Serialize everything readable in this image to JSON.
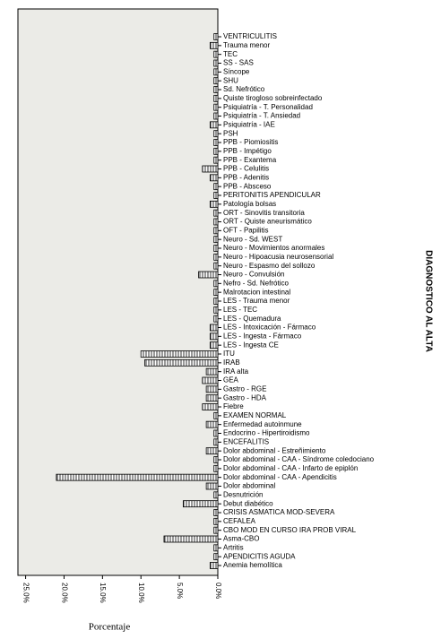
{
  "chart_data": {
    "type": "hbar",
    "x_label": "Porcentaje",
    "y_label": "DIAGNOSTICO AL ALTA",
    "categories": [
      "VENTRICULITIS",
      "Trauma menor",
      "TEC",
      "SS - SAS",
      "Síncope",
      "SHU",
      "Sd. Nefrótico",
      "Quiste tirogloso sobreinfectado",
      "Psiquiatría - T. Personalidad",
      "Psiquiatría - T. Ansiedad",
      "Psiquiatría - IAE",
      "PSH",
      "PPB - Piomiositis",
      "PPB - Impétigo",
      "PPB - Exantema",
      "PPB - Celulitis",
      "PPB - Adenitis",
      "PPB - Absceso",
      "PERITONITIS APENDICULAR",
      "Patología bolsas",
      "ORT - Sinovitis transitoria",
      "ORT - Quiste aneurismático",
      "OFT - Papilitis",
      "Neuro - Sd. WEST",
      "Neuro - Movimientos anormales",
      "Neuro - Hipoacusia neurosensorial",
      "Neuro - Espasmo del sollozo",
      "Neuro - Convulsión",
      "Nefro - Sd. Nefrótico",
      "Malrotacion intestinal",
      "LES - Trauma menor",
      "LES - TEC",
      "LES - Quemadura",
      "LES - Intoxicación - Fármaco",
      "LES - Ingesta - Fármaco",
      "LES - Ingesta CE",
      "ITU",
      "IRAB",
      "IRA alta",
      "GEA",
      "Gastro - RGE",
      "Gastro - HDA",
      "Fiebre",
      "EXAMEN NORMAL",
      "Enfermedad autoinmune",
      "Endocrino - Hipertiroidismo",
      "ENCEFALITIS",
      "Dolor abdominal - Estreñimiento",
      "Dolor abdominal - CAA - Síndrome coledociano",
      "Dolor abdominal - CAA - Infarto de epiplón",
      "Dolor abdominal - CAA - Apendicitis",
      "Dolor abdominal",
      "Desnutrición",
      "Debut diabético",
      "CRISIS ASMATICA MOD-SEVERA",
      "CEFALEA",
      "CBO MOD EN CURSO IRA PROB VIRAL",
      "Asma-CBO",
      "Artritis",
      "APENDICITIS AGUDA",
      "Anemia hemolítica"
    ],
    "values": [
      0.5,
      1.0,
      0.5,
      0.5,
      0.5,
      0.5,
      0.5,
      0.5,
      0.5,
      0.5,
      1.0,
      0.5,
      0.5,
      0.5,
      0.5,
      2.0,
      1.0,
      0.5,
      0.5,
      1.0,
      0.5,
      0.5,
      0.5,
      0.5,
      0.5,
      0.5,
      0.5,
      2.5,
      0.5,
      0.5,
      0.5,
      0.5,
      0.5,
      1.0,
      1.0,
      1.0,
      10.0,
      9.5,
      1.5,
      2.0,
      1.5,
      1.5,
      2.0,
      0.5,
      1.5,
      0.5,
      0.5,
      1.5,
      0.5,
      0.5,
      21.0,
      1.5,
      0.5,
      4.5,
      0.5,
      0.5,
      0.5,
      7.0,
      0.5,
      0.5,
      1.0
    ],
    "xlim": [
      26,
      0
    ],
    "xticks": [
      {
        "value": 25,
        "label": "25.0%"
      },
      {
        "value": 20,
        "label": "20.0%"
      },
      {
        "value": 15,
        "label": "15.0%"
      },
      {
        "value": 10,
        "label": "10.0%"
      },
      {
        "value": 5,
        "label": "5.0%"
      },
      {
        "value": 0,
        "label": "0.0%"
      }
    ],
    "color": "#000000",
    "background": "#ebebe7",
    "pattern": "vertical-lines"
  }
}
